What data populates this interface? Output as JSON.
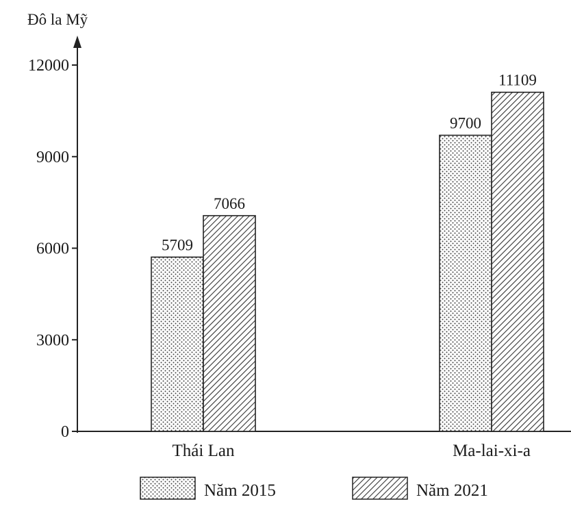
{
  "chart_data": {
    "type": "bar",
    "ylabel": "Đô la Mỹ",
    "categories": [
      "Thái Lan",
      "Ma-lai-xi-a"
    ],
    "series": [
      {
        "name": "Năm 2015",
        "values": [
          5709,
          9700
        ],
        "pattern": "dotted"
      },
      {
        "name": "Năm 2021",
        "values": [
          7066,
          11109
        ],
        "pattern": "hatched"
      }
    ],
    "ylim": [
      0,
      12000
    ],
    "yticks": [
      0,
      3000,
      6000,
      9000,
      12000
    ],
    "grid": false,
    "legend_position": "bottom"
  }
}
